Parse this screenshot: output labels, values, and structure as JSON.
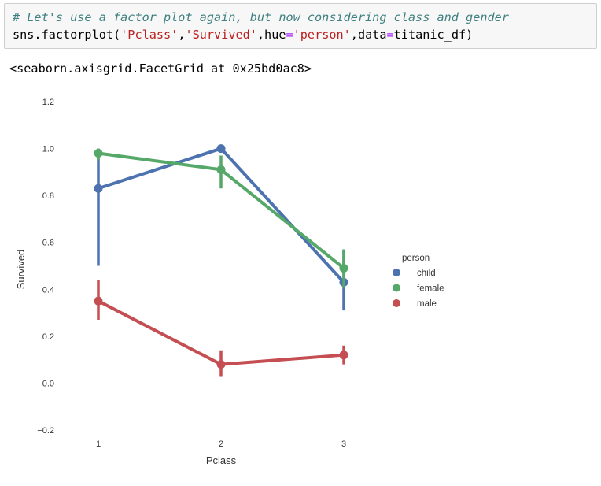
{
  "code_cell": {
    "comment": "# Let's use a factor plot again, but now considering class and gender",
    "line2_prefix": "sns.factorplot(",
    "arg1": "'Pclass'",
    "comma1": ",",
    "arg2": "'Survived'",
    "hue_kw": ",hue",
    "eq1": "=",
    "arg3": "'person'",
    "data_kw": ",data",
    "eq2": "=",
    "line2_suffix": "titanic_df)"
  },
  "output": {
    "repr": "<seaborn.axisgrid.FacetGrid at 0x25bd0ac8>"
  },
  "chart_data": {
    "type": "line",
    "xlabel": "Pclass",
    "ylabel": "Survived",
    "categories": [
      "1",
      "2",
      "3"
    ],
    "yticks": [
      "−0.2",
      "0.0",
      "0.2",
      "0.4",
      "0.6",
      "0.8",
      "1.0",
      "1.2"
    ],
    "ytick_values": [
      -0.2,
      0.0,
      0.2,
      0.4,
      0.6,
      0.8,
      1.0,
      1.2
    ],
    "ylim": [
      -0.2,
      1.2
    ],
    "grid": false,
    "legend": {
      "title": "person",
      "placement": "right"
    },
    "series": [
      {
        "name": "child",
        "color": "#4c72b0",
        "values": [
          0.83,
          1.0,
          0.43
        ],
        "ci": [
          [
            0.5,
            1.0
          ],
          [
            1.0,
            1.0
          ],
          [
            0.31,
            0.57
          ]
        ]
      },
      {
        "name": "female",
        "color": "#55a868",
        "values": [
          0.98,
          0.91,
          0.49
        ],
        "ci": [
          [
            0.95,
            1.0
          ],
          [
            0.83,
            0.97
          ],
          [
            0.41,
            0.57
          ]
        ]
      },
      {
        "name": "male",
        "color": "#c44e52",
        "values": [
          0.35,
          0.08,
          0.12
        ],
        "ci": [
          [
            0.27,
            0.44
          ],
          [
            0.03,
            0.14
          ],
          [
            0.08,
            0.16
          ]
        ]
      }
    ]
  }
}
